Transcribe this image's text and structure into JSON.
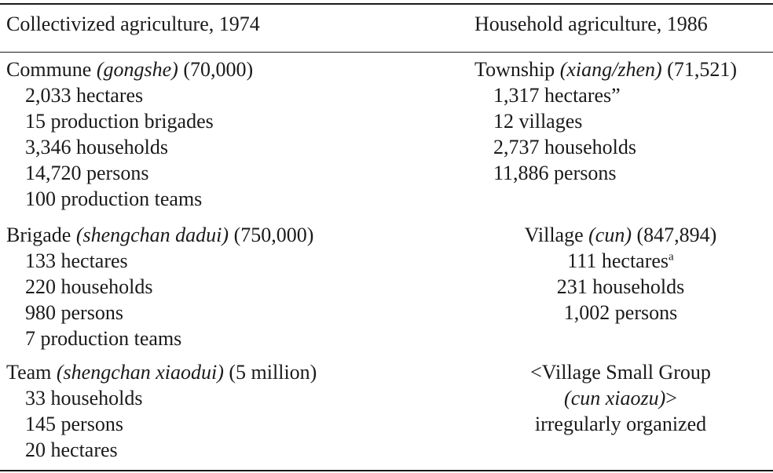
{
  "header": {
    "left": "Collectivized agriculture, 1974",
    "right": "Household agriculture, 1986"
  },
  "commune": {
    "name": "Commune ",
    "term": "(gongshe)",
    "count": " (70,000)",
    "items": [
      "2,033 hectares",
      "15 production brigades",
      "3,346 households",
      "14,720 persons",
      "100 production teams"
    ]
  },
  "township": {
    "name": "Township ",
    "term": "(xiang/zhen)",
    "count": " (71,521)",
    "items": [
      "1,317 hectares”",
      "12 villages",
      "2,737 households",
      "11,886 persons"
    ]
  },
  "brigade": {
    "name": "Brigade ",
    "term": "(shengchan dadui)",
    "count": " (750,000)",
    "items": [
      "133 hectares",
      "220 households",
      "980 persons",
      "7 production teams"
    ]
  },
  "village": {
    "name": "Village ",
    "term": "(cun)",
    "count": " (847,894)",
    "hectares": "111 hectares",
    "hectares_note": "a",
    "items": [
      "231 households",
      "1,002 persons"
    ]
  },
  "team": {
    "name": "Team ",
    "term": "(shengchan xiaodui)",
    "count": " (5 million)",
    "items": [
      "33 households",
      "145 persons",
      "20 hectares"
    ]
  },
  "village_small_group": {
    "line1": "<Village Small Group",
    "term": "(cun xiaozu)",
    "term_suffix": ">",
    "line3": "irregularly organized"
  }
}
